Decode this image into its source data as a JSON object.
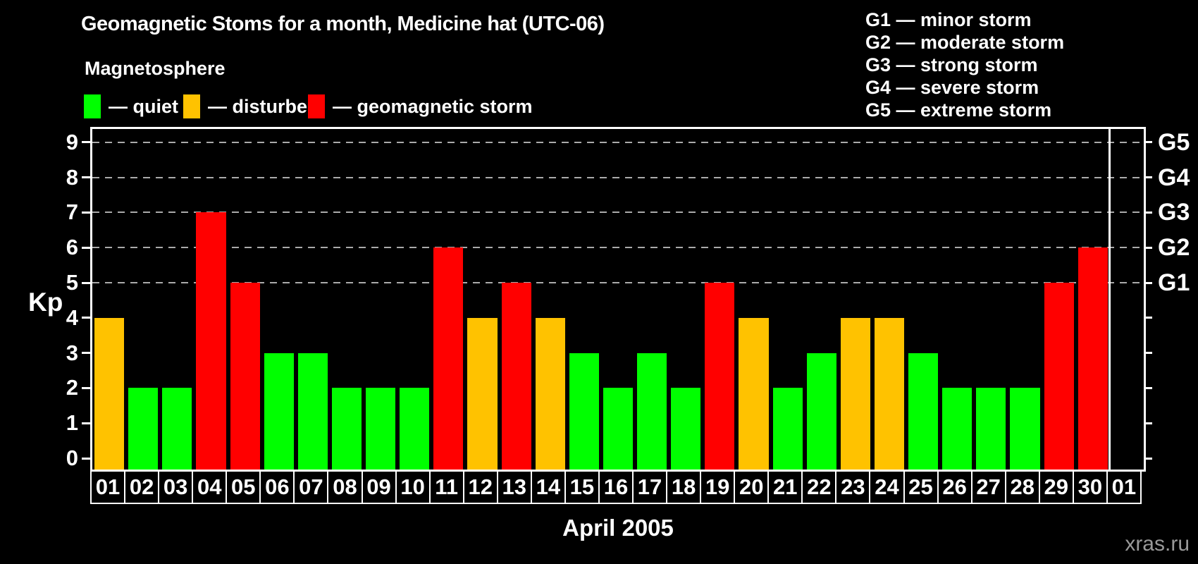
{
  "title": "Geomagnetic Stoms for a month, Medicine hat (UTC-06)",
  "watermark": "xras.ru",
  "storm_legend": {
    "items": [
      "G1 — minor storm",
      "G2 — moderate storm",
      "G3 — strong storm",
      "G4 — severe storm",
      "G5 — extreme storm"
    ]
  },
  "magnetosphere_legend": {
    "title": "Magnetosphere",
    "items": [
      {
        "label": "— quiet",
        "status": "quiet",
        "color": "#00ff00"
      },
      {
        "label": "— disturbed",
        "status": "disturbed",
        "color": "#ffc200"
      },
      {
        "label": "— geomagnetic storm",
        "status": "storm",
        "color": "#ff0000"
      }
    ]
  },
  "chart_data": {
    "type": "bar",
    "title": "Geomagnetic Stoms for a month, Medicine hat (UTC-06)",
    "xlabel": "April 2005",
    "ylabel": "Kp",
    "ylim": [
      0,
      9
    ],
    "yticks": [
      0,
      1,
      2,
      3,
      4,
      5,
      6,
      7,
      8,
      9
    ],
    "gridlines_at": [
      5,
      6,
      7,
      8,
      9
    ],
    "grid": "dashed",
    "legend_position": "top-left",
    "categories": [
      "01",
      "02",
      "03",
      "04",
      "05",
      "06",
      "07",
      "08",
      "09",
      "10",
      "11",
      "12",
      "13",
      "14",
      "15",
      "16",
      "17",
      "18",
      "19",
      "20",
      "21",
      "22",
      "23",
      "24",
      "25",
      "26",
      "27",
      "28",
      "29",
      "30",
      "01"
    ],
    "values": [
      4,
      2,
      2,
      7,
      5,
      3,
      3,
      2,
      2,
      2,
      6,
      4,
      5,
      4,
      3,
      2,
      3,
      2,
      5,
      4,
      2,
      3,
      4,
      4,
      3,
      2,
      2,
      2,
      5,
      6,
      null
    ],
    "statuses": [
      "disturbed",
      "quiet",
      "quiet",
      "storm",
      "storm",
      "quiet",
      "quiet",
      "quiet",
      "quiet",
      "quiet",
      "storm",
      "disturbed",
      "storm",
      "disturbed",
      "quiet",
      "quiet",
      "quiet",
      "quiet",
      "storm",
      "disturbed",
      "quiet",
      "quiet",
      "disturbed",
      "disturbed",
      "quiet",
      "quiet",
      "quiet",
      "quiet",
      "storm",
      "storm",
      null
    ],
    "colors": {
      "quiet": "#00ff00",
      "disturbed": "#ffc200",
      "storm": "#ff0000"
    },
    "month_boundary_index": 30,
    "right_axis": {
      "labels": [
        {
          "value": 5,
          "label": "G1"
        },
        {
          "value": 6,
          "label": "G2"
        },
        {
          "value": 7,
          "label": "G3"
        },
        {
          "value": 8,
          "label": "G4"
        },
        {
          "value": 9,
          "label": "G5"
        }
      ]
    }
  }
}
